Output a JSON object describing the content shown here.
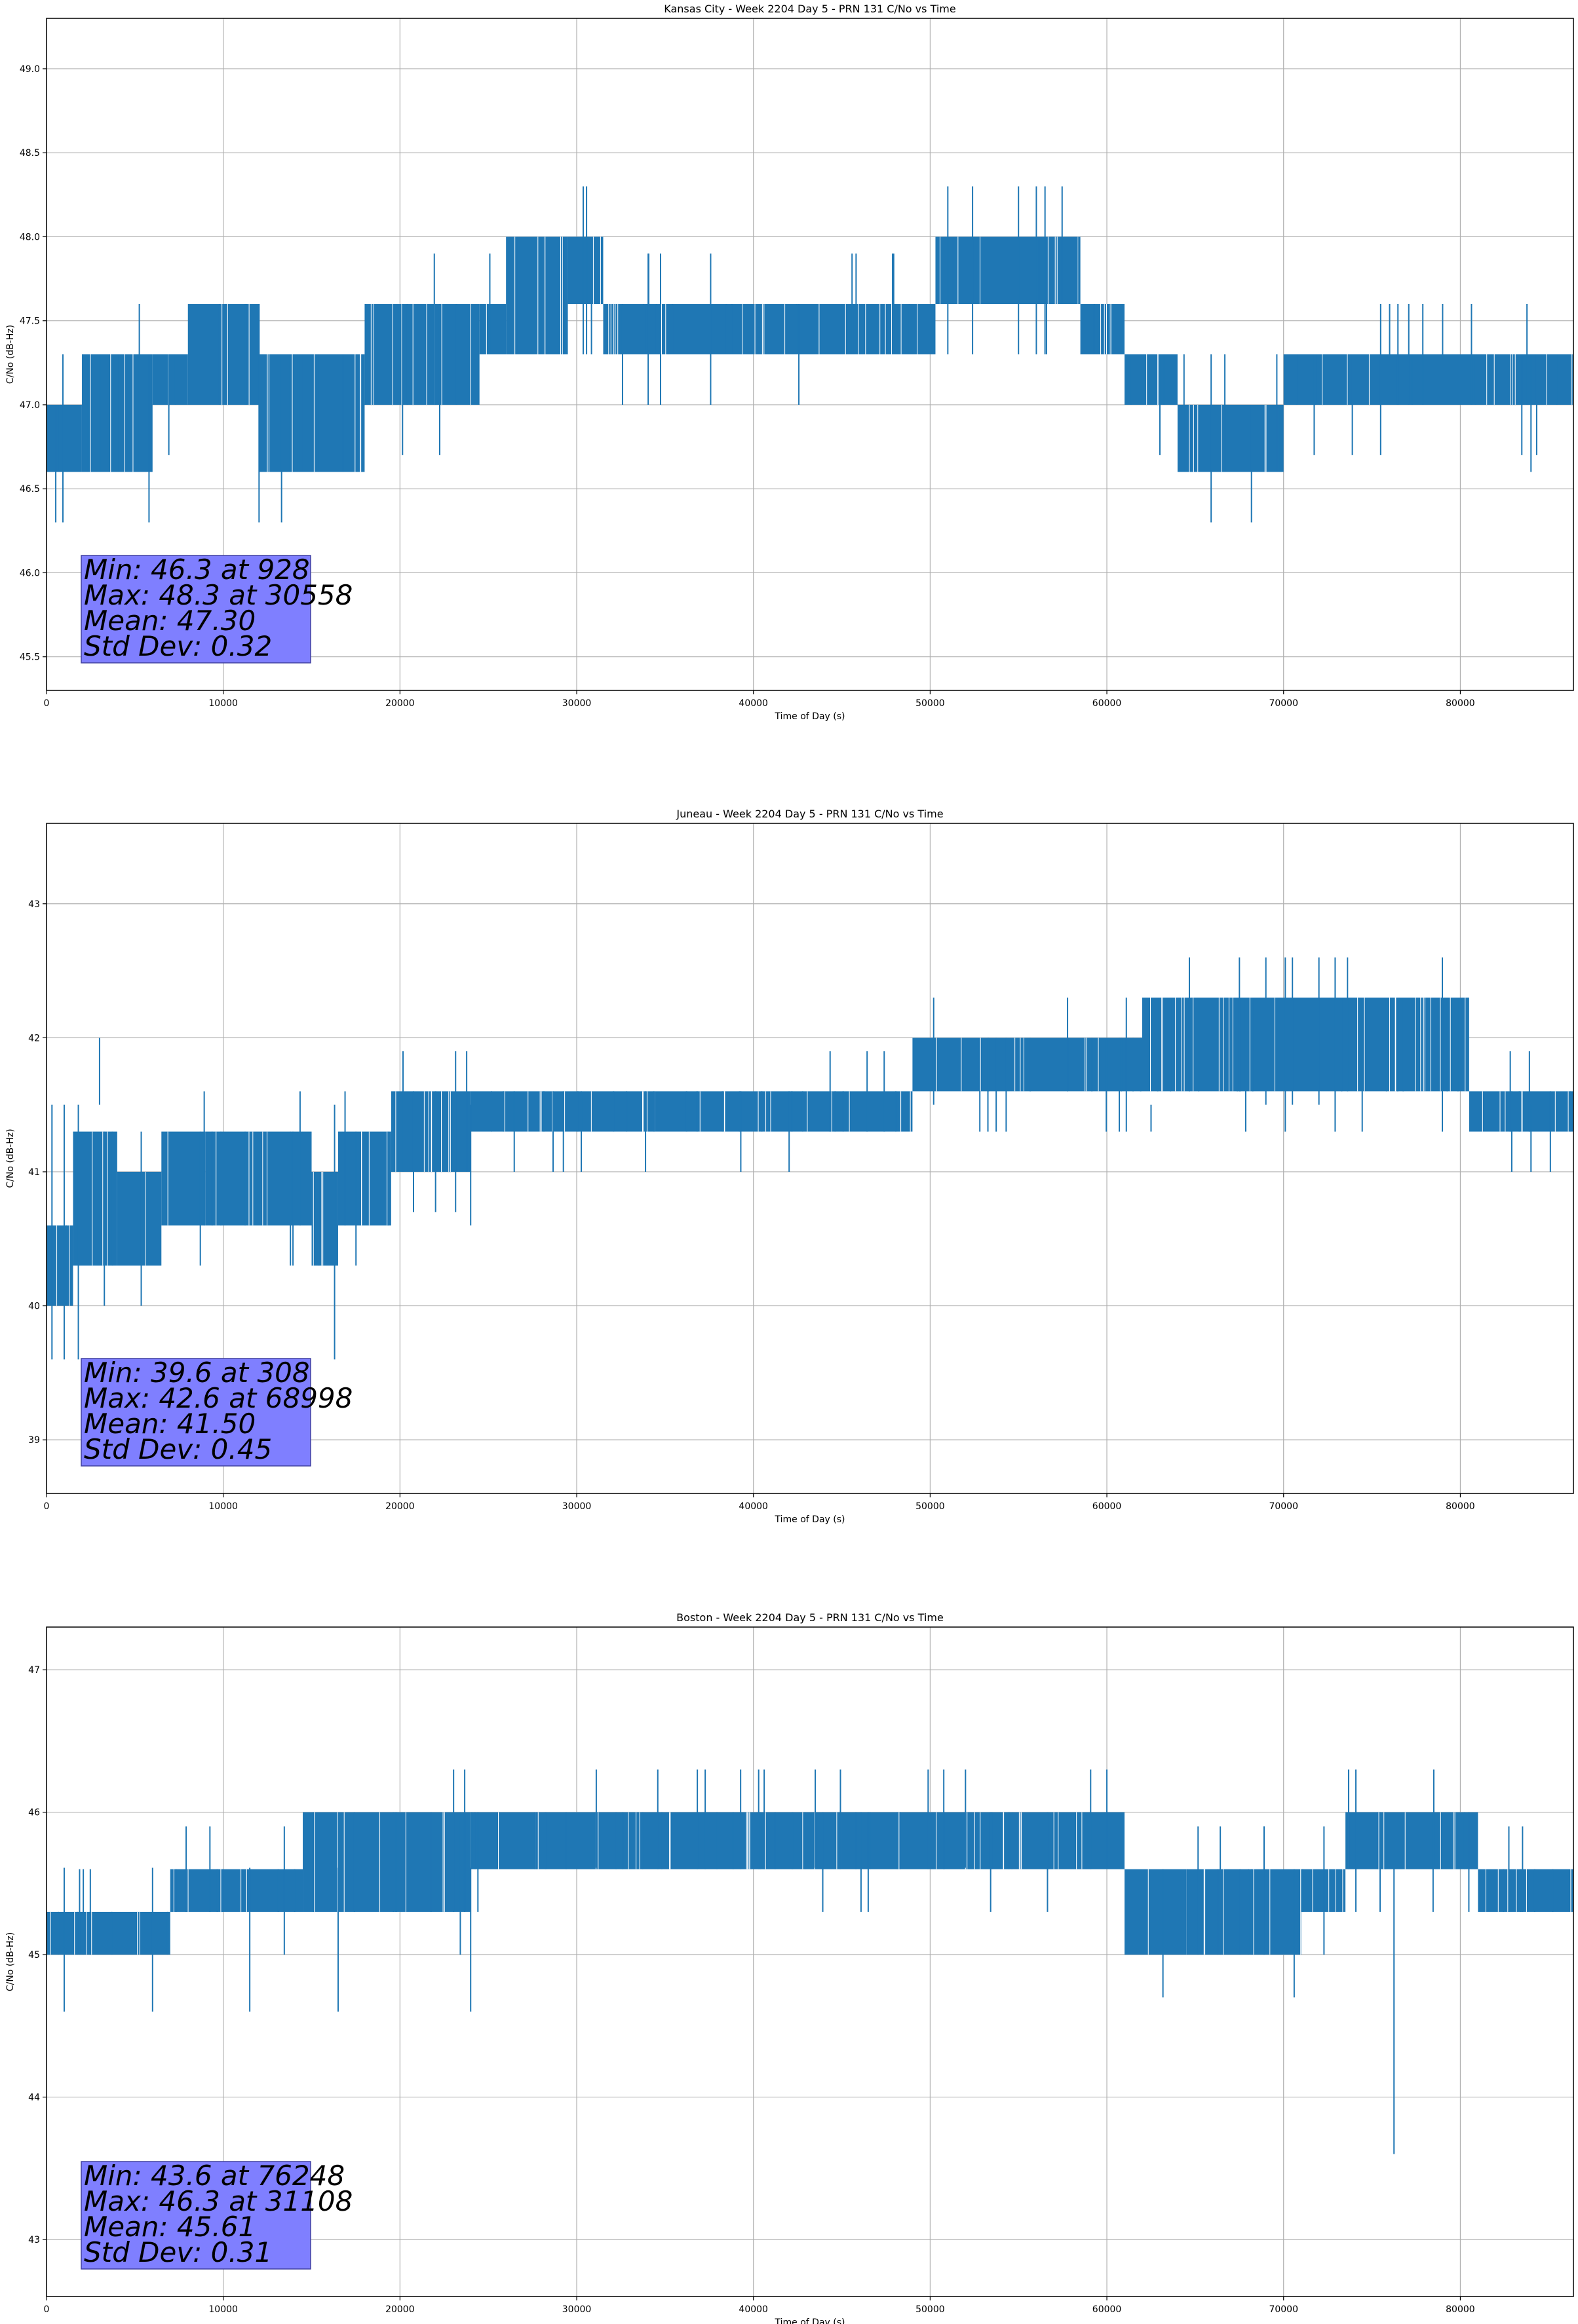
{
  "colors": {
    "series": "#1f77b4",
    "grid": "#b0b0b0",
    "stats_box_fill": "#7f7fff",
    "stats_box_edge": "#4040a0"
  },
  "chart_data": [
    {
      "type": "line",
      "title": "Kansas City - Week 2204 Day 5 - PRN 131 C/No vs Time",
      "xlabel": "Time of Day (s)",
      "ylabel": "C/No (dB-Hz)",
      "xlim": [
        0,
        86400
      ],
      "ylim": [
        45.3,
        49.3
      ],
      "xticks": [
        0,
        10000,
        20000,
        30000,
        40000,
        50000,
        60000,
        70000,
        80000
      ],
      "yticks": [
        45.5,
        46.0,
        46.5,
        47.0,
        47.5,
        48.0,
        48.5,
        49.0
      ],
      "ytick_labels": [
        "45.5",
        "46.0",
        "46.5",
        "47.0",
        "47.5",
        "48.0",
        "48.5",
        "49.0"
      ],
      "grid": true,
      "stats": {
        "min": 46.3,
        "min_time": 928,
        "max": 48.3,
        "max_time": 30558,
        "mean": 47.3,
        "std_dev": 0.32,
        "lines": [
          "Min: 46.3 at 928",
          "Max: 48.3 at 30558",
          "Mean: 47.30",
          "Std Dev: 0.32"
        ]
      },
      "segments": [
        {
          "start": 0,
          "end": 2000,
          "low": 46.6,
          "high": 47.0
        },
        {
          "start": 2000,
          "end": 6000,
          "low": 46.6,
          "high": 47.3
        },
        {
          "start": 6000,
          "end": 8000,
          "low": 47.0,
          "high": 47.3
        },
        {
          "start": 8000,
          "end": 12000,
          "low": 47.0,
          "high": 47.6
        },
        {
          "start": 12000,
          "end": 18000,
          "low": 46.6,
          "high": 47.3
        },
        {
          "start": 18000,
          "end": 24500,
          "low": 47.0,
          "high": 47.6
        },
        {
          "start": 24500,
          "end": 26000,
          "low": 47.3,
          "high": 47.6
        },
        {
          "start": 26000,
          "end": 29500,
          "low": 47.3,
          "high": 48.0
        },
        {
          "start": 29500,
          "end": 31500,
          "low": 47.6,
          "high": 48.0
        },
        {
          "start": 31500,
          "end": 50300,
          "low": 47.3,
          "high": 47.6
        },
        {
          "start": 50300,
          "end": 58500,
          "low": 47.6,
          "high": 48.0
        },
        {
          "start": 58500,
          "end": 61000,
          "low": 47.3,
          "high": 47.6
        },
        {
          "start": 61000,
          "end": 64000,
          "low": 47.0,
          "high": 47.3
        },
        {
          "start": 64000,
          "end": 70000,
          "low": 46.6,
          "high": 47.0
        },
        {
          "start": 70000,
          "end": 86400,
          "low": 47.0,
          "high": 47.3
        }
      ],
      "spikes": [
        [
          928,
          46.3
        ],
        [
          5800,
          46.3
        ],
        [
          13300,
          46.3
        ],
        [
          65900,
          46.3
        ],
        [
          30558,
          48.3
        ],
        [
          51000,
          48.3
        ],
        [
          52400,
          48.3
        ],
        [
          55000,
          48.3
        ],
        [
          56500,
          48.3
        ],
        [
          84000,
          46.6
        ],
        [
          79000,
          47.6
        ],
        [
          76000,
          47.6
        ]
      ]
    },
    {
      "type": "line",
      "title": "Juneau - Week 2204 Day 5 - PRN 131 C/No vs Time",
      "xlabel": "Time of Day (s)",
      "ylabel": "C/No (dB-Hz)",
      "xlim": [
        0,
        86400
      ],
      "ylim": [
        38.6,
        43.6
      ],
      "xticks": [
        0,
        10000,
        20000,
        30000,
        40000,
        50000,
        60000,
        70000,
        80000
      ],
      "yticks": [
        39,
        40,
        41,
        42,
        43
      ],
      "ytick_labels": [
        "39",
        "40",
        "41",
        "42",
        "43"
      ],
      "grid": true,
      "stats": {
        "min": 39.6,
        "min_time": 308,
        "max": 42.6,
        "max_time": 68998,
        "mean": 41.5,
        "std_dev": 0.45,
        "lines": [
          "Min: 39.6 at 308",
          "Max: 42.6 at 68998",
          "Mean: 41.50",
          "Std Dev: 0.45"
        ]
      },
      "segments": [
        {
          "start": 0,
          "end": 1500,
          "low": 40.0,
          "high": 40.6
        },
        {
          "start": 1500,
          "end": 4000,
          "low": 40.3,
          "high": 41.3
        },
        {
          "start": 4000,
          "end": 6500,
          "low": 40.3,
          "high": 41.0
        },
        {
          "start": 6500,
          "end": 9000,
          "low": 40.6,
          "high": 41.3
        },
        {
          "start": 9000,
          "end": 15000,
          "low": 40.6,
          "high": 41.3
        },
        {
          "start": 15000,
          "end": 16500,
          "low": 40.3,
          "high": 41.0
        },
        {
          "start": 16500,
          "end": 19500,
          "low": 40.6,
          "high": 41.3
        },
        {
          "start": 19500,
          "end": 24000,
          "low": 41.0,
          "high": 41.6
        },
        {
          "start": 24000,
          "end": 49000,
          "low": 41.3,
          "high": 41.6
        },
        {
          "start": 49000,
          "end": 62000,
          "low": 41.6,
          "high": 42.0
        },
        {
          "start": 62000,
          "end": 80500,
          "low": 41.6,
          "high": 42.3
        },
        {
          "start": 80500,
          "end": 86400,
          "low": 41.3,
          "high": 41.6
        }
      ],
      "spikes": [
        [
          308,
          39.6
        ],
        [
          1000,
          39.6
        ],
        [
          1800,
          39.6
        ],
        [
          16300,
          39.6
        ],
        [
          3000,
          42.0
        ],
        [
          50200,
          42.3
        ],
        [
          68998,
          42.6
        ],
        [
          70500,
          42.6
        ],
        [
          72000,
          42.6
        ],
        [
          24000,
          40.6
        ],
        [
          84000,
          41.0
        ],
        [
          62500,
          41.3
        ]
      ]
    },
    {
      "type": "line",
      "title": "Boston - Week 2204 Day 5 - PRN 131 C/No vs Time",
      "xlabel": "Time of Day (s)",
      "ylabel": "C/No (dB-Hz)",
      "xlim": [
        0,
        86400
      ],
      "ylim": [
        42.6,
        47.3
      ],
      "xticks": [
        0,
        10000,
        20000,
        30000,
        40000,
        50000,
        60000,
        70000,
        80000
      ],
      "yticks": [
        43,
        44,
        45,
        46,
        47
      ],
      "ytick_labels": [
        "43",
        "44",
        "45",
        "46",
        "47"
      ],
      "grid": true,
      "stats": {
        "min": 43.6,
        "min_time": 76248,
        "max": 46.3,
        "max_time": 31108,
        "mean": 45.61,
        "std_dev": 0.31,
        "lines": [
          "Min: 43.6 at 76248",
          "Max: 46.3 at 31108",
          "Mean: 45.61",
          "Std Dev: 0.31"
        ]
      },
      "segments": [
        {
          "start": 0,
          "end": 7000,
          "low": 45.0,
          "high": 45.3
        },
        {
          "start": 7000,
          "end": 14500,
          "low": 45.3,
          "high": 45.6
        },
        {
          "start": 14500,
          "end": 24000,
          "low": 45.3,
          "high": 46.0
        },
        {
          "start": 24000,
          "end": 31000,
          "low": 45.6,
          "high": 46.0
        },
        {
          "start": 31000,
          "end": 61000,
          "low": 45.6,
          "high": 46.0
        },
        {
          "start": 61000,
          "end": 71000,
          "low": 45.0,
          "high": 45.6
        },
        {
          "start": 71000,
          "end": 73500,
          "low": 45.3,
          "high": 45.6
        },
        {
          "start": 73500,
          "end": 81000,
          "low": 45.6,
          "high": 46.0
        },
        {
          "start": 81000,
          "end": 86400,
          "low": 45.3,
          "high": 45.6
        }
      ],
      "spikes": [
        [
          31108,
          46.3
        ],
        [
          43500,
          46.3
        ],
        [
          52000,
          46.3
        ],
        [
          60000,
          46.3
        ],
        [
          78500,
          46.3
        ],
        [
          1000,
          44.6
        ],
        [
          6000,
          44.6
        ],
        [
          11500,
          44.6
        ],
        [
          16500,
          44.6
        ],
        [
          24000,
          44.6
        ],
        [
          76248,
          43.6
        ]
      ]
    }
  ]
}
